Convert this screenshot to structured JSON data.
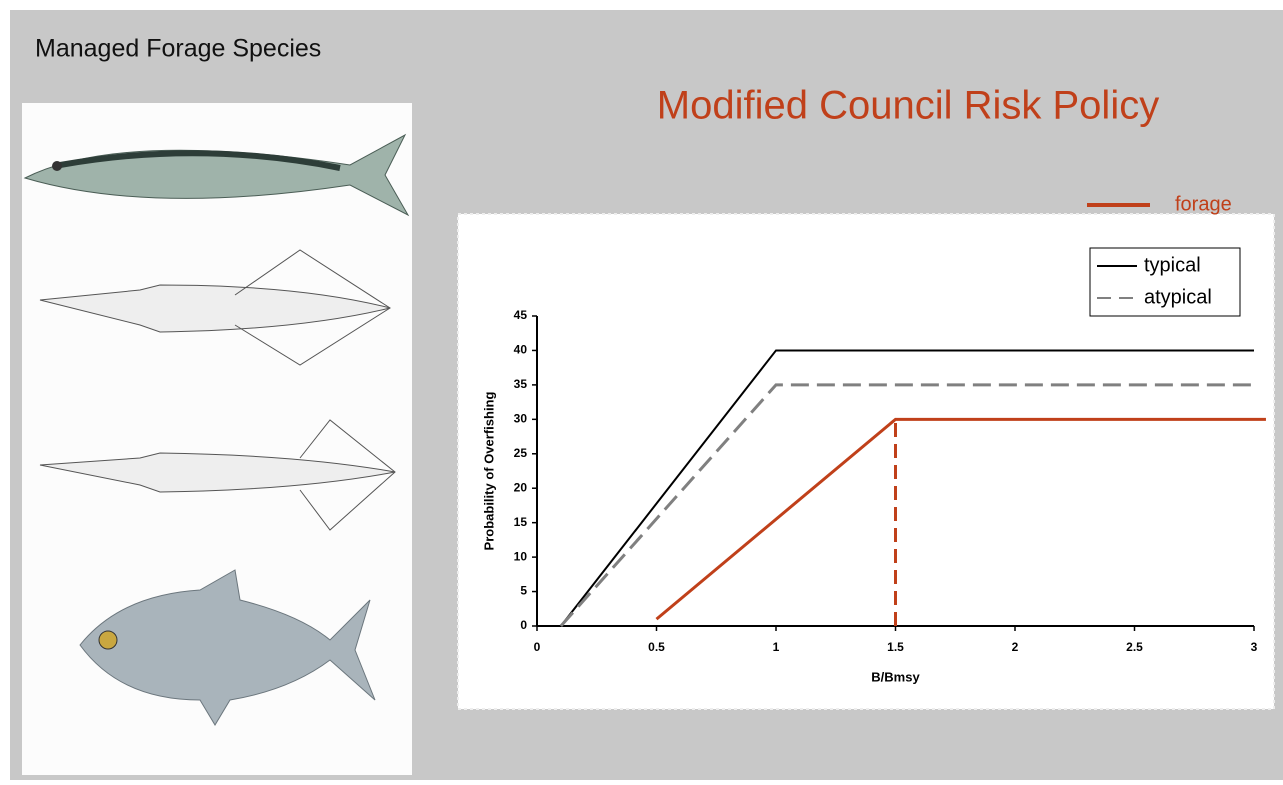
{
  "slide": {
    "heading": "Managed Forage Species"
  },
  "chart_data": {
    "type": "line",
    "title": "Modified Council Risk Policy",
    "x_label": "B/Bmsy",
    "y_label": "Probability of Overfishing",
    "xlim": [
      0,
      3
    ],
    "ylim": [
      0,
      45
    ],
    "xticks": [
      0,
      0.5,
      1,
      1.5,
      2,
      2.5,
      3
    ],
    "yticks": [
      0,
      5,
      10,
      15,
      20,
      25,
      30,
      35,
      40,
      45
    ],
    "grid": false,
    "series": [
      {
        "name": "typical",
        "color": "#000000",
        "dash": false,
        "x": [
          0.1,
          1,
          3
        ],
        "values": [
          0,
          40,
          40
        ]
      },
      {
        "name": "atypical",
        "color": "#808080",
        "dash": true,
        "x": [
          0.1,
          1,
          3
        ],
        "values": [
          0,
          35,
          35
        ]
      },
      {
        "name": "forage",
        "color": "#c0401a",
        "dash": false,
        "x": [
          0.5,
          1.5,
          3.05
        ],
        "values": [
          1,
          30,
          30
        ]
      }
    ],
    "reference_line": {
      "x": 1.5,
      "values": [
        0,
        30
      ],
      "color": "#c0401a"
    }
  }
}
